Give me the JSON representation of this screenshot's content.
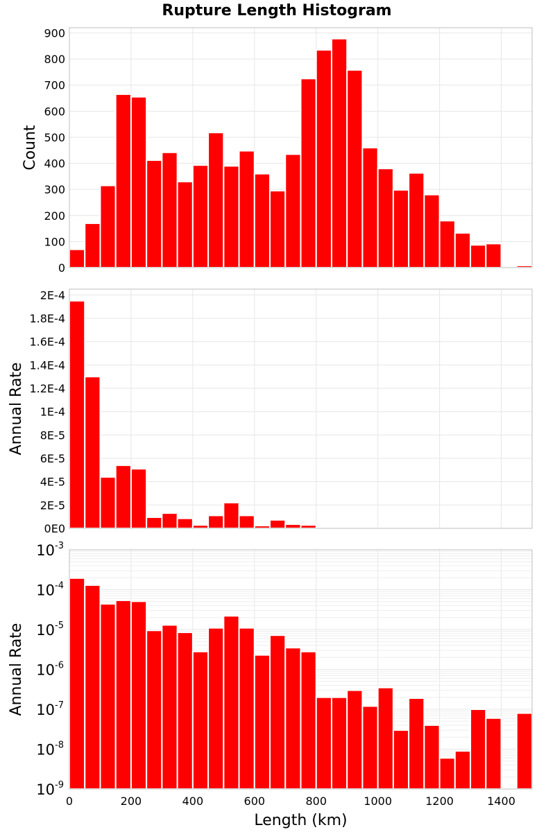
{
  "chart_data": [
    {
      "type": "bar",
      "title": "Rupture Length Histogram",
      "xlabel": "",
      "ylabel": "Count",
      "xlim": [
        0,
        1500
      ],
      "ylim": [
        0,
        920
      ],
      "bin_width": 50,
      "x_bin_starts": [
        0,
        50,
        100,
        150,
        200,
        250,
        300,
        350,
        400,
        450,
        500,
        550,
        600,
        650,
        700,
        750,
        800,
        850,
        900,
        950,
        1000,
        1050,
        1100,
        1150,
        1200,
        1250,
        1300,
        1350,
        1400,
        1450
      ],
      "values": [
        70,
        170,
        315,
        665,
        655,
        412,
        442,
        330,
        393,
        518,
        390,
        448,
        360,
        295,
        435,
        725,
        835,
        878,
        758,
        460,
        380,
        298,
        363,
        280,
        180,
        133,
        87,
        92,
        0,
        8
      ],
      "yticks": [
        0,
        100,
        200,
        300,
        400,
        500,
        600,
        700,
        800,
        900
      ],
      "ytick_labels": [
        "0",
        "100",
        "200",
        "300",
        "400",
        "500",
        "600",
        "700",
        "800",
        "900"
      ],
      "grid": true,
      "color": "#ff0000"
    },
    {
      "type": "bar",
      "title": "",
      "xlabel": "",
      "ylabel": "Annual Rate",
      "xlim": [
        0,
        1500
      ],
      "ylim": [
        0,
        0.000205
      ],
      "bin_width": 50,
      "x_bin_starts": [
        0,
        50,
        100,
        150,
        200,
        250,
        300,
        350,
        400,
        450,
        500,
        550,
        600,
        650,
        700,
        750,
        800,
        850,
        900,
        950,
        1000,
        1050,
        1100,
        1150,
        1200,
        1250,
        1300,
        1350,
        1400,
        1450
      ],
      "values": [
        0.000195,
        0.00013,
        4.4e-05,
        5.4e-05,
        5.1e-05,
        9.5e-06,
        1.3e-05,
        8.5e-06,
        2.8e-06,
        1.1e-05,
        2.2e-05,
        1.1e-05,
        2.3e-06,
        7.2e-06,
        3.5e-06,
        2.8e-06,
        2e-07,
        2e-07,
        3e-07,
        1.2e-07,
        3.5e-07,
        3e-08,
        1.9e-07,
        4e-08,
        6e-09,
        9e-09,
        1e-07,
        6e-08,
        0,
        8e-08
      ],
      "yticks": [
        0,
        2e-05,
        4e-05,
        6e-05,
        8e-05,
        0.0001,
        0.00012,
        0.00014,
        0.00016,
        0.00018,
        0.0002
      ],
      "ytick_labels": [
        "0E0",
        "2E-5",
        "4E-5",
        "6E-5",
        "8E-5",
        "1E-4",
        "1.2E-4",
        "1.4E-4",
        "1.6E-4",
        "1.8E-4",
        "2E-4"
      ],
      "grid": true,
      "color": "#ff0000"
    },
    {
      "type": "bar",
      "title": "",
      "xlabel": "Length (km)",
      "ylabel": "Annual Rate",
      "xlim": [
        0,
        1500
      ],
      "y_scale": "log",
      "ylim_exponents": [
        -9,
        -3
      ],
      "bin_width": 50,
      "x_bin_starts": [
        0,
        50,
        100,
        150,
        200,
        250,
        300,
        350,
        400,
        450,
        500,
        550,
        600,
        650,
        700,
        750,
        800,
        850,
        900,
        950,
        1000,
        1050,
        1100,
        1150,
        1200,
        1250,
        1300,
        1350,
        1400,
        1450
      ],
      "values": [
        0.000195,
        0.00013,
        4.4e-05,
        5.4e-05,
        5.1e-05,
        9.5e-06,
        1.3e-05,
        8.5e-06,
        2.8e-06,
        1.1e-05,
        2.2e-05,
        1.1e-05,
        2.3e-06,
        7.2e-06,
        3.5e-06,
        2.8e-06,
        2e-07,
        2e-07,
        3e-07,
        1.2e-07,
        3.5e-07,
        3e-08,
        1.9e-07,
        4e-08,
        6e-09,
        9e-09,
        1e-07,
        6e-08,
        0,
        8e-08
      ],
      "ytick_base": "10",
      "ytick_exponents": [
        "-9",
        "-8",
        "-7",
        "-6",
        "-5",
        "-4",
        "-3"
      ],
      "xticks": [
        0,
        200,
        400,
        600,
        800,
        1000,
        1200,
        1400
      ],
      "xtick_labels": [
        "0",
        "200",
        "400",
        "600",
        "800",
        "1000",
        "1200",
        "1400"
      ],
      "grid": true,
      "color": "#ff0000"
    }
  ]
}
